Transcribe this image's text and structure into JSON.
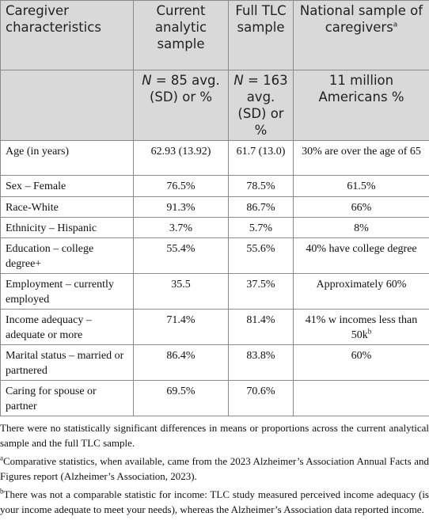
{
  "table": {
    "header_row1": [
      "Caregiver characteristics",
      "Current analytic sample",
      "Full TLC sample",
      "National sample of caregivers"
    ],
    "header_row1_sup": "a",
    "header_row2": [
      {
        "italic": "N",
        "text": " = 85 avg. (SD) or %"
      },
      {
        "italic": "N",
        "text": " = 163 avg. (SD) or %"
      },
      {
        "text": "11 million Americans %"
      }
    ],
    "rows": [
      [
        "Age (in years)",
        "62.93 (13.92)",
        "61.7 (13.0)",
        {
          "text": "30% are over the age of 65"
        }
      ],
      [
        "Sex – Female",
        "76.5%",
        "78.5%",
        {
          "text": "61.5%"
        }
      ],
      [
        "Race-White",
        "91.3%",
        "86.7%",
        {
          "text": "66%"
        }
      ],
      [
        "Ethnicity – Hispanic",
        "3.7%",
        "5.7%",
        {
          "text": "8%"
        }
      ],
      [
        "Education – college degree+",
        "55.4%",
        "55.6%",
        {
          "text": "40% have college degree"
        }
      ],
      [
        "Employment – currently employed",
        "35.5",
        "37.5%",
        {
          "text": "Approximately 60%"
        }
      ],
      [
        "Income adequacy – adequate or more",
        "71.4%",
        "81.4%",
        {
          "text": "41% w incomes less than 50k",
          "sup": "b"
        }
      ],
      [
        "Marital status – married or partnered",
        "86.4%",
        "83.8%",
        {
          "text": "60%"
        }
      ],
      [
        "Caring for spouse or partner",
        "69.5%",
        "70.6%"
      ]
    ]
  },
  "notes": [
    {
      "text": "There were no statistically significant differences in means or proportions across the current analytical sample and the full TLC sample."
    },
    {
      "sup": "a",
      "text": "Comparative statistics, when available, came from the 2023 Alzheimer’s Association Annual Facts and Figures report (Alzheimer’s Association, 2023)."
    },
    {
      "sup": "b",
      "text": "There was not a comparable statistic for income: TLC study measured perceived income adequacy (is your income adequate to meet your needs), whereas the Alzheimer’s Association data reported income."
    }
  ]
}
